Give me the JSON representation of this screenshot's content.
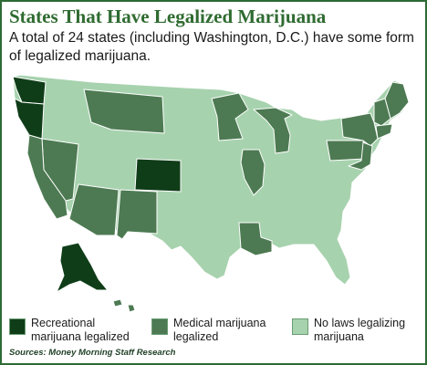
{
  "title": "States That Have Legalized Marijuana",
  "subtitle": "A total of 24 states (including Washington, D.C.) have some form of legalized marijuana.",
  "colors": {
    "recreational": "#0f3d18",
    "medical": "#4d7a52",
    "none": "#a7d2ae",
    "border": "#ffffff",
    "frame": "#2e6b35"
  },
  "legend": [
    {
      "key": "recreational",
      "label": "Recreational marijuana legalized"
    },
    {
      "key": "medical",
      "label": "Medical marijuana legalized"
    },
    {
      "key": "none",
      "label": "No laws legalizing marijuana"
    }
  ],
  "sources": "Sources: Money Morning Staff Research"
}
